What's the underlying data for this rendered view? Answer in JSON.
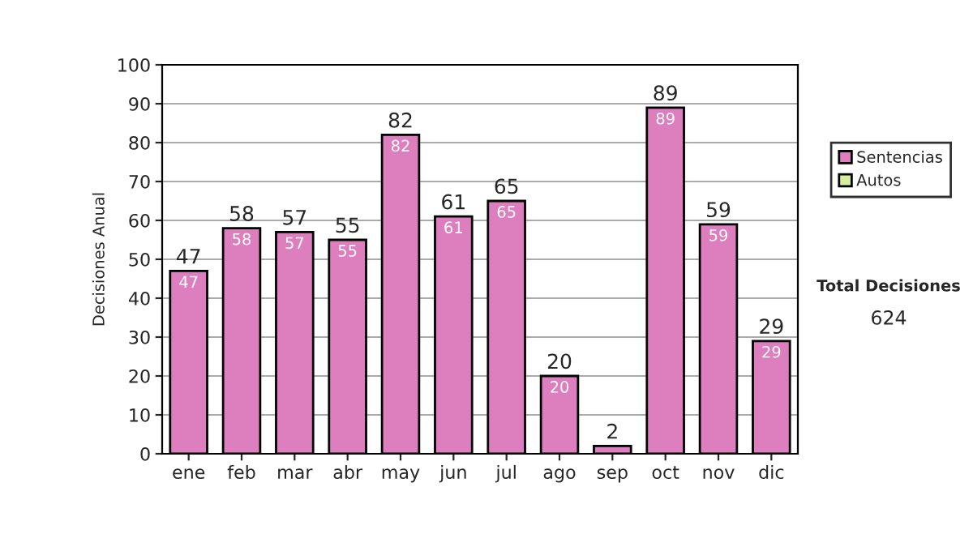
{
  "chart_data": {
    "type": "bar",
    "ylabel": "Decisiones Anual",
    "categories": [
      "ene",
      "feb",
      "mar",
      "abr",
      "may",
      "jun",
      "jul",
      "ago",
      "sep",
      "oct",
      "nov",
      "dic"
    ],
    "series": [
      {
        "name": "Sentencias",
        "color": "#dd7fbf",
        "values": [
          47,
          58,
          57,
          55,
          82,
          61,
          65,
          20,
          2,
          89,
          59,
          29
        ],
        "value_labels": [
          "47",
          "58",
          "57",
          "55",
          "82",
          "61",
          "65",
          "20",
          null,
          "89",
          "59",
          "29"
        ]
      },
      {
        "name": "Autos",
        "color": "#d9eca0",
        "values": [
          null,
          null,
          null,
          null,
          null,
          null,
          null,
          null,
          null,
          null,
          null,
          null
        ]
      }
    ],
    "stacked": true,
    "totals": [
      "47",
      "58",
      "57",
      "55",
      "82",
      "61",
      "65",
      "20",
      "2",
      "89",
      "59",
      "29"
    ],
    "ylim": [
      0,
      100
    ],
    "yticks": [
      0,
      10,
      20,
      30,
      40,
      50,
      60,
      70,
      80,
      90,
      100
    ],
    "grid": "y",
    "legend": "right",
    "annotations": [
      "Total Decisiones",
      "624"
    ]
  }
}
